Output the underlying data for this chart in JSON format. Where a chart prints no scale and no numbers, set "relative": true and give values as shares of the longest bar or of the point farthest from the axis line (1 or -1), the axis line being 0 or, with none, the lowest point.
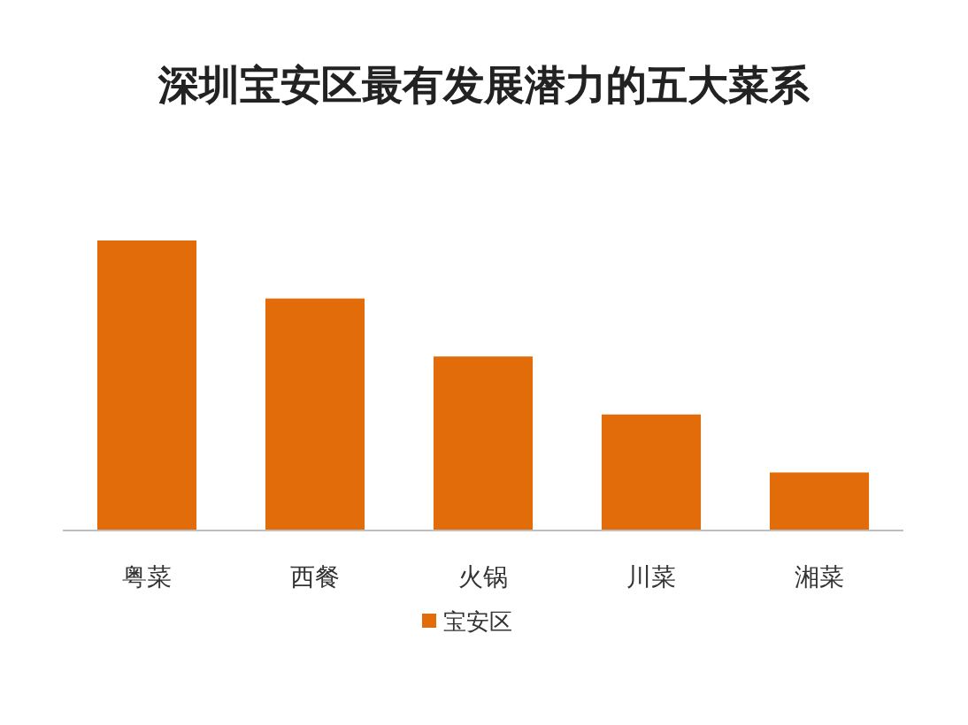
{
  "chart_data": {
    "type": "bar",
    "title": "深圳宝安区最有发展潜力的五大菜系",
    "categories": [
      "粤菜",
      "西餐",
      "火锅",
      "川菜",
      "湘菜"
    ],
    "series": [
      {
        "name": "宝安区",
        "color": "#e36c0a",
        "values": [
          1,
          0.8,
          0.6,
          0.4,
          0.2
        ]
      }
    ],
    "relative": true,
    "legend": "bottom"
  }
}
